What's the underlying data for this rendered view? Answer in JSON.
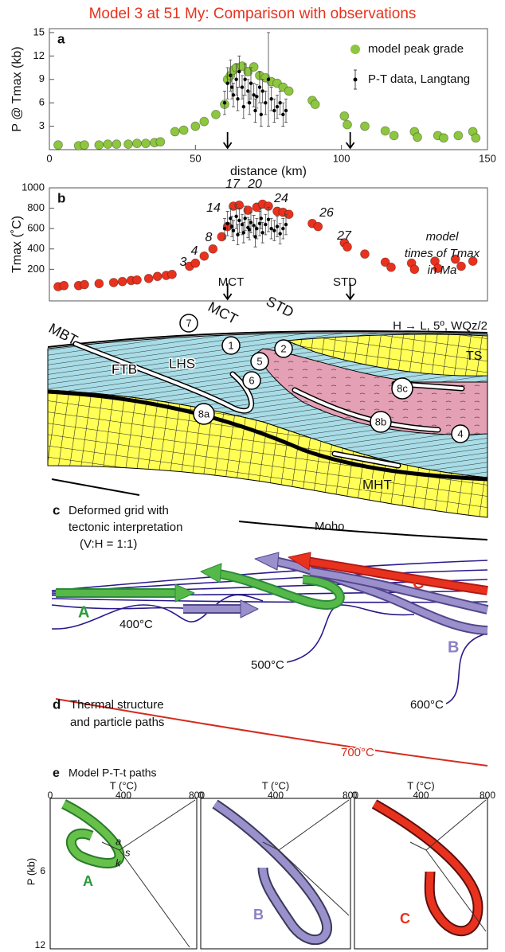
{
  "title": "Model 3 at 51 My: Comparison with observations",
  "chart_data": [
    {
      "type": "scatter",
      "panel_label": "a",
      "xlabel": "distance (km)",
      "ylabel": "P @ Tmax (kb)",
      "xlim": [
        0,
        150
      ],
      "xticks": [
        0,
        50,
        100,
        150
      ],
      "ylim": [
        0,
        15.5
      ],
      "yticks": [
        3,
        6,
        9,
        12,
        15
      ],
      "series": [
        {
          "name": "model peak grade",
          "color": "#8dc63f",
          "x": [
            3,
            10,
            12,
            17,
            20,
            23,
            27,
            30,
            33,
            36,
            38,
            43,
            46,
            50,
            53,
            57,
            60,
            61,
            62,
            63,
            64,
            66,
            68,
            70,
            72,
            74,
            76,
            78,
            80,
            82,
            90,
            91,
            101,
            102,
            108,
            115,
            118,
            125,
            126,
            133,
            135,
            140,
            145,
            146
          ],
          "values": [
            0.6,
            0.5,
            0.6,
            0.6,
            0.7,
            0.7,
            0.7,
            0.8,
            0.8,
            0.9,
            1,
            2.3,
            2.5,
            3,
            3.6,
            4.5,
            5.8,
            9,
            9.5,
            10.2,
            10.5,
            10.7,
            10,
            10.6,
            9.5,
            9.2,
            8.7,
            8.5,
            8,
            7.5,
            6.3,
            5.8,
            4.3,
            3.2,
            3,
            2.4,
            1.8,
            2.3,
            1.6,
            1.8,
            1.5,
            1.8,
            2.3,
            1.5
          ]
        },
        {
          "name": "P-T data, Langtang",
          "color": "#000000",
          "x": [
            60,
            61,
            62,
            62.5,
            63,
            64,
            64.5,
            65,
            66,
            66.5,
            67,
            68,
            68.5,
            69,
            70,
            70.5,
            71,
            72,
            72.5,
            73,
            74,
            75,
            76,
            77,
            78,
            79,
            80,
            81
          ],
          "values": [
            6,
            8.5,
            9.5,
            8,
            7,
            9,
            6.5,
            10,
            8,
            5.5,
            9,
            7.5,
            6,
            8.5,
            7,
            5,
            6.8,
            8,
            4.5,
            7.5,
            6,
            9,
            6.5,
            5,
            5.5,
            6,
            4.5,
            5
          ],
          "errors": [
            1.5,
            2,
            2,
            1.5,
            1.5,
            2,
            1.5,
            2,
            1.5,
            1.5,
            2,
            1.5,
            1.5,
            2,
            1.5,
            1.5,
            1.5,
            2,
            1.5,
            1.5,
            1.5,
            6,
            1.5,
            1.5,
            1.5,
            1.5,
            1.5,
            1.5
          ]
        }
      ]
    },
    {
      "type": "scatter",
      "panel_label": "b",
      "ylabel": "Tmax (˚C)",
      "xlim": [
        0,
        150
      ],
      "ylim": [
        -110,
        1000
      ],
      "yticks": [
        200,
        400,
        600,
        800,
        1000
      ],
      "time_labels": [
        3,
        4,
        8,
        14,
        17,
        20,
        24,
        26,
        27
      ],
      "note": [
        "model",
        "times of Tmax",
        "in Ma"
      ],
      "markers": [
        "MCT",
        "STD"
      ],
      "series": [
        {
          "color": "#e8321e",
          "x": [
            3,
            5,
            10,
            12,
            17,
            22,
            25,
            28,
            30,
            34,
            37,
            40,
            42,
            48,
            50,
            53,
            56,
            59,
            61,
            63,
            65,
            68,
            71,
            73,
            75,
            78,
            80,
            82,
            90,
            92,
            101,
            102,
            108,
            115,
            117,
            124,
            125,
            132,
            133,
            139,
            141,
            145
          ],
          "values": [
            30,
            40,
            40,
            50,
            60,
            70,
            80,
            90,
            95,
            110,
            130,
            140,
            150,
            230,
            260,
            330,
            400,
            520,
            620,
            820,
            830,
            780,
            810,
            840,
            820,
            770,
            760,
            740,
            650,
            620,
            460,
            420,
            350,
            270,
            220,
            260,
            200,
            280,
            210,
            300,
            230,
            280
          ]
        },
        {
          "color": "#000000",
          "x": [
            60,
            61,
            62,
            62.5,
            63,
            64,
            64.5,
            65,
            66,
            66.5,
            67,
            68,
            68.5,
            69,
            70,
            70.5,
            71,
            72,
            72.5,
            73,
            74,
            75,
            76,
            77,
            78,
            79,
            80,
            81
          ],
          "values": [
            600,
            650,
            700,
            620,
            580,
            720,
            540,
            680,
            640,
            560,
            700,
            610,
            590,
            660,
            630,
            520,
            600,
            650,
            700,
            560,
            640,
            690,
            600,
            580,
            620,
            550,
            600,
            640
          ],
          "errors": [
            100,
            120,
            100,
            100,
            100,
            120,
            100,
            120,
            100,
            100,
            120,
            100,
            100,
            100,
            100,
            100,
            100,
            120,
            100,
            100,
            100,
            120,
            100,
            100,
            100,
            100,
            100,
            100
          ]
        }
      ]
    }
  ],
  "panel_c": {
    "label": "c",
    "caption": [
      "Deformed grid with",
      "tectonic interpretation",
      "(V:H = 1:1)"
    ],
    "faults": [
      "MBT",
      "MCT",
      "STD"
    ],
    "setting": "H → L, 5º, WQz/2",
    "units": [
      "TS",
      "FTB",
      "LHS",
      "MHT"
    ],
    "moho": "Moho",
    "circled": [
      "7",
      "1",
      "2",
      "5",
      "6",
      "8a",
      "8c",
      "8b",
      "4"
    ]
  },
  "panel_d": {
    "label": "d",
    "caption": [
      "Thermal structure",
      "and particle paths"
    ],
    "paths": [
      "A",
      "B",
      "C"
    ],
    "isotherms": [
      "400°C",
      "500°C",
      "600°C",
      "700°C"
    ]
  },
  "panel_e": {
    "label": "e",
    "caption": "Model P-T-t paths",
    "xlabel": "T (°C)",
    "ylabel": "P (kb)",
    "t_ticks": [
      0,
      400,
      800
    ],
    "p_ticks": [
      6,
      12
    ],
    "fields": [
      "a",
      "s",
      "k"
    ],
    "paths": [
      "A",
      "B",
      "C"
    ]
  }
}
